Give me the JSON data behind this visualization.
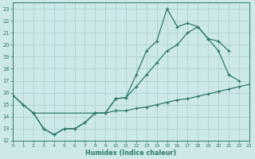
{
  "bg_color": "#cce8e8",
  "grid_color": "#aacfcf",
  "line_color": "#2d7a6a",
  "xlabel": "Humidex (Indice chaleur)",
  "xlim": [
    0,
    23
  ],
  "ylim": [
    12,
    23.5
  ],
  "yticks": [
    12,
    13,
    14,
    15,
    16,
    17,
    18,
    19,
    20,
    21,
    22,
    23
  ],
  "xticks": [
    0,
    1,
    2,
    3,
    4,
    5,
    6,
    7,
    8,
    9,
    10,
    11,
    12,
    13,
    14,
    15,
    16,
    17,
    18,
    19,
    20,
    21,
    22,
    23
  ],
  "line1_x": [
    0,
    1,
    2,
    3,
    4,
    5,
    6,
    7,
    8,
    9,
    10,
    11,
    12,
    13,
    14,
    15,
    16,
    17,
    18,
    19,
    20,
    21,
    22
  ],
  "line1_y": [
    15.8,
    15.0,
    14.3,
    13.0,
    12.5,
    13.0,
    13.0,
    13.5,
    14.3,
    14.3,
    15.5,
    15.6,
    17.5,
    19.5,
    20.3,
    23.0,
    21.5,
    21.8,
    21.5,
    20.5,
    19.5,
    17.5,
    17.0
  ],
  "line2_x": [
    0,
    1,
    2,
    3,
    4,
    5,
    6,
    7,
    8,
    9,
    10,
    11,
    12,
    13,
    14,
    15,
    16,
    17,
    18,
    19,
    20,
    21
  ],
  "line2_y": [
    15.8,
    15.0,
    14.3,
    13.0,
    12.5,
    13.0,
    13.0,
    13.5,
    14.3,
    14.3,
    15.5,
    15.6,
    16.5,
    17.5,
    18.5,
    19.5,
    20.0,
    21.0,
    21.5,
    20.5,
    20.3,
    19.5
  ],
  "line3_x": [
    2,
    8,
    9,
    10,
    11,
    12,
    13,
    14,
    15,
    16,
    17,
    18,
    19,
    20,
    21,
    22,
    23
  ],
  "line3_y": [
    14.3,
    14.3,
    14.3,
    14.5,
    14.5,
    14.7,
    14.8,
    15.0,
    15.2,
    15.4,
    15.5,
    15.7,
    15.9,
    16.1,
    16.3,
    16.5,
    16.7
  ]
}
